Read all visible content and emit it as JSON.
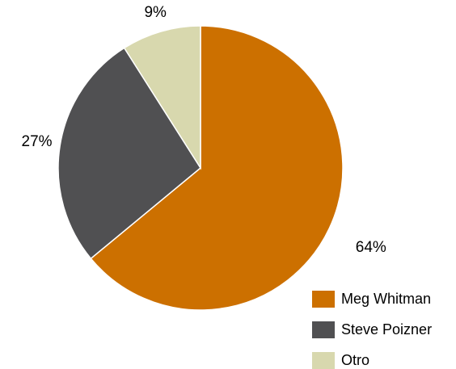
{
  "chart_data": {
    "type": "pie",
    "categories": [
      "Meg Whitman",
      "Steve Poizner",
      "Otro"
    ],
    "values": [
      64,
      27,
      9
    ],
    "value_labels": [
      "64%",
      "27%",
      "9%"
    ],
    "colors": [
      "#CC7000",
      "#505052",
      "#D8D8AE"
    ],
    "start_angle_deg": 0,
    "direction": "clockwise",
    "legend_position": "bottom-right",
    "title": ""
  }
}
